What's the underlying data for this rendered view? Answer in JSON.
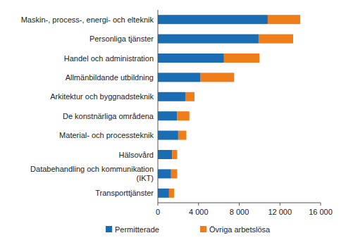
{
  "chart_data": {
    "type": "bar",
    "orientation": "horizontal",
    "stacked": true,
    "categories": [
      "Maskin-, process-, energi- och elteknik",
      "Personliga tjänster",
      "Handel och administration",
      "Allmänbildande utbildning",
      "Arkitektur och byggnadsteknik",
      "De konstnärliga områdena",
      "Material- och processteknik",
      "Hälsovård",
      "Databehandling och kommunikation\n(IKT)",
      "Transporttjänster"
    ],
    "series": [
      {
        "name": "Permitterade",
        "color": "#1a6db3",
        "values": [
          10800,
          9900,
          6500,
          4200,
          2700,
          1900,
          2000,
          1400,
          1300,
          1100
        ]
      },
      {
        "name": "Övriga arbetslösa",
        "color": "#ee7d1a",
        "values": [
          3200,
          3400,
          3500,
          3300,
          900,
          1200,
          800,
          500,
          600,
          500
        ]
      }
    ],
    "xlim": [
      0,
      16000
    ],
    "xticks": [
      0,
      {
        "value": 4000,
        "label": "4 000"
      },
      {
        "value": 8000,
        "label": "8 000"
      },
      {
        "value": 12000,
        "label": "12 000"
      },
      {
        "value": 16000,
        "label": "16 000"
      }
    ],
    "grid": false,
    "legend": "bottom"
  }
}
